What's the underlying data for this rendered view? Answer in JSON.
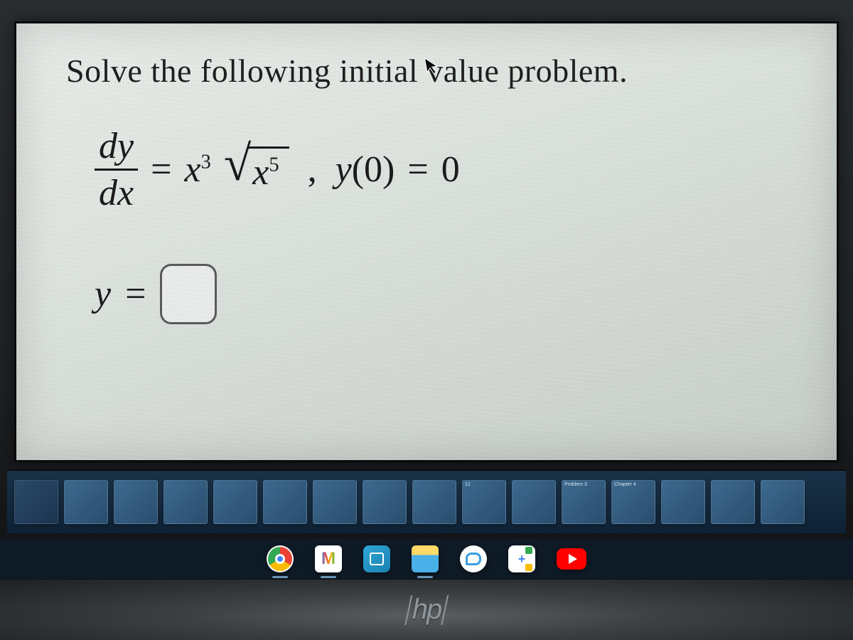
{
  "problem": {
    "title": "Solve the following initial value problem.",
    "title_fontsize": 46,
    "equation": {
      "lhs_numerator": "dy",
      "lhs_denominator": "dx",
      "equals": "=",
      "rhs_coeff_base": "x",
      "rhs_coeff_exp": "3",
      "sqrt_base": "x",
      "sqrt_exp": "5",
      "separator": ",",
      "condition_func": "y",
      "condition_arg": "(0)",
      "condition_eq": "=",
      "condition_val": "0"
    },
    "answer_prompt_lhs": "y",
    "answer_prompt_eq": "=",
    "answer_box_value": ""
  },
  "colors": {
    "page_bg_light": "#e8ede9",
    "page_bg_dark": "#c8cec9",
    "text": "#1a1a1a",
    "answer_box_border": "#5a5a5a",
    "taskbar_bg": "#0f2235",
    "tile_bg_from": "#3d6a8f",
    "tile_bg_to": "#2a4d6e",
    "dock_bg": "#0e1a26",
    "hp_logo": "#8e969c"
  },
  "taskbar_tiles": [
    {
      "label": ""
    },
    {
      "label": ""
    },
    {
      "label": ""
    },
    {
      "label": ""
    },
    {
      "label": ""
    },
    {
      "label": ""
    },
    {
      "label": ""
    },
    {
      "label": ""
    },
    {
      "label": ""
    },
    {
      "label": "12"
    },
    {
      "label": ""
    },
    {
      "label": "Problem 3"
    },
    {
      "label": "Chapter 4"
    },
    {
      "label": ""
    },
    {
      "label": ""
    },
    {
      "label": ""
    }
  ],
  "dock_apps": [
    {
      "name": "chrome",
      "has_underline": true
    },
    {
      "name": "gmail",
      "has_underline": true
    },
    {
      "name": "store",
      "has_underline": false
    },
    {
      "name": "explorer",
      "has_underline": true
    },
    {
      "name": "chat",
      "has_underline": false
    },
    {
      "name": "snip",
      "has_underline": false
    },
    {
      "name": "youtube",
      "has_underline": false
    }
  ],
  "laptop": {
    "brand": "hp"
  }
}
